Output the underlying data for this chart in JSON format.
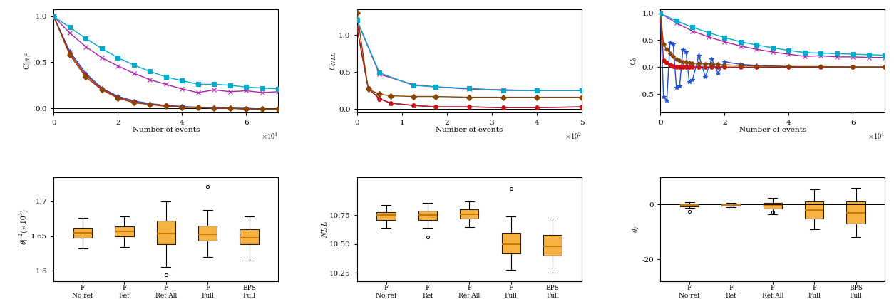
{
  "top_plots": {
    "plot1": {
      "ylabel": "$C_{||\\theta||^2}$",
      "xlabel": "Number of events",
      "xscale_factor": 10000,
      "xlim": [
        0,
        70000
      ],
      "ylim": [
        -0.05,
        1.08
      ],
      "xticks": [
        0,
        20000,
        40000,
        60000
      ],
      "yticks": [
        0.0,
        0.5,
        1.0
      ],
      "series": {
        "forward_no_ref": {
          "x": [
            0,
            5000,
            10000,
            15000,
            20000,
            25000,
            30000,
            35000,
            40000,
            45000,
            50000,
            55000,
            60000,
            65000,
            70000
          ],
          "y": [
            1.0,
            0.62,
            0.38,
            0.22,
            0.13,
            0.08,
            0.05,
            0.03,
            0.02,
            0.01,
            0.01,
            0.0,
            0.0,
            -0.01,
            -0.01
          ],
          "color": "#1f4fcc",
          "marker": "*",
          "linestyle": "-",
          "markersize": 5,
          "zorder": 3
        },
        "forward_ref": {
          "x": [
            0,
            5000,
            10000,
            15000,
            20000,
            25000,
            30000,
            35000,
            40000,
            45000,
            50000,
            55000,
            60000,
            65000,
            70000
          ],
          "y": [
            1.0,
            0.6,
            0.36,
            0.21,
            0.12,
            0.07,
            0.04,
            0.03,
            0.01,
            0.01,
            0.0,
            0.0,
            -0.01,
            -0.01,
            -0.01
          ],
          "color": "#cc1111",
          "marker": "o",
          "linestyle": "-",
          "markersize": 4,
          "zorder": 3
        },
        "forward_ref_all": {
          "x": [
            0,
            5000,
            10000,
            15000,
            20000,
            25000,
            30000,
            35000,
            40000,
            45000,
            50000,
            55000,
            60000,
            65000,
            70000
          ],
          "y": [
            1.0,
            0.58,
            0.34,
            0.2,
            0.11,
            0.06,
            0.04,
            0.02,
            0.01,
            0.01,
            0.0,
            0.0,
            -0.01,
            -0.01,
            -0.01
          ],
          "color": "#884400",
          "marker": "D",
          "linestyle": "-",
          "markersize": 4,
          "zorder": 3
        },
        "forward_full_ref": {
          "x": [
            0,
            5000,
            10000,
            15000,
            20000,
            25000,
            30000,
            35000,
            40000,
            45000,
            50000,
            55000,
            60000,
            65000,
            70000
          ],
          "y": [
            1.0,
            0.82,
            0.67,
            0.55,
            0.46,
            0.38,
            0.31,
            0.26,
            0.21,
            0.17,
            0.2,
            0.18,
            0.19,
            0.17,
            0.18
          ],
          "color": "#aa22aa",
          "marker": "x",
          "linestyle": "-",
          "markersize": 5,
          "zorder": 3
        },
        "bps_full_ref": {
          "x": [
            0,
            5000,
            10000,
            15000,
            20000,
            25000,
            30000,
            35000,
            40000,
            45000,
            50000,
            55000,
            60000,
            65000,
            70000
          ],
          "y": [
            1.0,
            0.88,
            0.76,
            0.65,
            0.55,
            0.47,
            0.4,
            0.34,
            0.3,
            0.26,
            0.26,
            0.25,
            0.23,
            0.22,
            0.21
          ],
          "color": "#00aacc",
          "marker": "s",
          "linestyle": "-",
          "markersize": 5,
          "zorder": 3
        }
      }
    },
    "plot2": {
      "ylabel": "$C_{NLL}$",
      "xlabel": "Number of events",
      "xscale_factor": 100,
      "xlim": [
        0,
        500
      ],
      "ylim": [
        -0.05,
        1.35
      ],
      "xticks": [
        0,
        100,
        200,
        300,
        400,
        500
      ],
      "yticks": [
        0.0,
        0.5,
        1.0
      ],
      "series": {
        "forward_no_ref": {
          "x": [
            0,
            25,
            50,
            75,
            125,
            175,
            250,
            325,
            400,
            500
          ],
          "y": [
            1.1,
            0.28,
            0.14,
            0.08,
            0.05,
            0.03,
            0.03,
            0.02,
            0.02,
            0.03
          ],
          "color": "#1f4fcc",
          "marker": "*",
          "linestyle": "-",
          "markersize": 5,
          "zorder": 3
        },
        "forward_ref": {
          "x": [
            0,
            25,
            50,
            75,
            125,
            175,
            250,
            325,
            400,
            500
          ],
          "y": [
            1.1,
            0.28,
            0.14,
            0.08,
            0.05,
            0.03,
            0.03,
            0.02,
            0.02,
            0.03
          ],
          "color": "#cc1111",
          "marker": "o",
          "linestyle": "-",
          "markersize": 4,
          "zorder": 3
        },
        "forward_ref_all": {
          "x": [
            0,
            25,
            50,
            75,
            125,
            175,
            250,
            325,
            400,
            500
          ],
          "y": [
            1.3,
            0.27,
            0.2,
            0.18,
            0.17,
            0.17,
            0.16,
            0.16,
            0.16,
            0.16
          ],
          "color": "#884400",
          "marker": "D",
          "linestyle": "-",
          "markersize": 4,
          "zorder": 3
        },
        "forward_full_ref": {
          "x": [
            0,
            50,
            125,
            175,
            250,
            325,
            400,
            500
          ],
          "y": [
            1.2,
            0.47,
            0.33,
            0.3,
            0.27,
            0.26,
            0.25,
            0.25
          ],
          "color": "#aa22aa",
          "marker": "x",
          "linestyle": "-",
          "markersize": 5,
          "zorder": 3
        },
        "bps_full_ref": {
          "x": [
            0,
            50,
            125,
            175,
            250,
            325,
            400,
            500
          ],
          "y": [
            1.2,
            0.49,
            0.32,
            0.3,
            0.28,
            0.25,
            0.25,
            0.25
          ],
          "color": "#00aacc",
          "marker": "s",
          "linestyle": "-",
          "markersize": 5,
          "zorder": 3
        }
      }
    },
    "plot3": {
      "ylabel": "$C_{\\theta}$",
      "xlabel": "Number of events",
      "xscale_factor": 10000,
      "xlim": [
        0,
        70000
      ],
      "ylim": [
        -0.85,
        1.08
      ],
      "xticks": [
        0,
        20000,
        40000,
        60000
      ],
      "yticks": [
        -0.5,
        0.0,
        0.5,
        1.0
      ],
      "series": {
        "forward_no_ref": {
          "x": [
            0,
            1000,
            2000,
            3000,
            4000,
            5000,
            6000,
            7000,
            8000,
            9000,
            10000,
            12000,
            14000,
            16000,
            18000,
            20000,
            25000,
            30000,
            40000,
            50000,
            60000,
            70000
          ],
          "y": [
            1.0,
            -0.55,
            -0.62,
            0.45,
            0.42,
            -0.38,
            -0.35,
            0.32,
            0.28,
            -0.27,
            -0.24,
            0.22,
            -0.18,
            0.15,
            -0.12,
            0.1,
            0.05,
            0.03,
            0.01,
            0.0,
            0.0,
            0.0
          ],
          "color": "#1f4fcc",
          "marker": "*",
          "linestyle": "-",
          "markersize": 4,
          "zorder": 3
        },
        "forward_ref": {
          "x": [
            0,
            1000,
            2000,
            3000,
            4000,
            5000,
            6000,
            7000,
            8000,
            9000,
            10000,
            12000,
            14000,
            16000,
            18000,
            20000,
            25000,
            30000,
            40000,
            50000,
            60000,
            70000
          ],
          "y": [
            1.0,
            0.12,
            0.08,
            0.04,
            0.01,
            0.0,
            0.0,
            0.0,
            0.0,
            0.0,
            0.0,
            0.0,
            0.0,
            0.0,
            0.0,
            0.0,
            0.0,
            0.0,
            0.0,
            0.0,
            0.0,
            0.0
          ],
          "color": "#cc1111",
          "marker": "o",
          "linestyle": "-",
          "markersize": 4,
          "zorder": 3
        },
        "forward_ref_all": {
          "x": [
            0,
            1000,
            2000,
            3000,
            4000,
            5000,
            6000,
            7000,
            8000,
            9000,
            10000,
            12000,
            14000,
            16000,
            18000,
            20000,
            25000,
            30000,
            40000,
            50000,
            60000,
            70000
          ],
          "y": [
            1.0,
            0.42,
            0.33,
            0.26,
            0.2,
            0.15,
            0.12,
            0.1,
            0.1,
            0.08,
            0.07,
            0.07,
            0.06,
            0.06,
            0.05,
            0.04,
            0.03,
            0.02,
            0.01,
            0.01,
            0.0,
            0.0
          ],
          "color": "#884400",
          "marker": "D",
          "linestyle": "-",
          "markersize": 3,
          "zorder": 3
        },
        "forward_full_ref": {
          "x": [
            0,
            5000,
            10000,
            15000,
            20000,
            25000,
            30000,
            35000,
            40000,
            45000,
            50000,
            55000,
            60000,
            65000,
            70000
          ],
          "y": [
            1.0,
            0.82,
            0.67,
            0.56,
            0.47,
            0.39,
            0.33,
            0.28,
            0.24,
            0.2,
            0.21,
            0.19,
            0.19,
            0.18,
            0.18
          ],
          "color": "#aa22aa",
          "marker": "x",
          "linestyle": "-",
          "markersize": 5,
          "zorder": 3
        },
        "bps_full_ref": {
          "x": [
            0,
            5000,
            10000,
            15000,
            20000,
            25000,
            30000,
            35000,
            40000,
            45000,
            50000,
            55000,
            60000,
            65000,
            70000
          ],
          "y": [
            1.0,
            0.86,
            0.74,
            0.64,
            0.55,
            0.47,
            0.41,
            0.36,
            0.31,
            0.27,
            0.26,
            0.25,
            0.24,
            0.23,
            0.22
          ],
          "color": "#00aacc",
          "marker": "s",
          "linestyle": "-",
          "markersize": 5,
          "zorder": 3
        }
      }
    }
  },
  "bottom_plots": {
    "plot1": {
      "ylabel": "$||\\theta||^2(\\times 10^3)$",
      "categories": [
        "F\nNo ref",
        "F\nRef",
        "F\nRef All",
        "F\nFull\nRef",
        "BPS\nFull\nRef"
      ],
      "data": [
        {
          "median": 1.655,
          "q1": 1.648,
          "q3": 1.662,
          "whislo": 1.632,
          "whishi": 1.676,
          "fliers": []
        },
        {
          "median": 1.657,
          "q1": 1.65,
          "q3": 1.664,
          "whislo": 1.634,
          "whishi": 1.678,
          "fliers": []
        },
        {
          "median": 1.654,
          "q1": 1.638,
          "q3": 1.672,
          "whislo": 1.605,
          "whishi": 1.7,
          "fliers": [
            1.594
          ]
        },
        {
          "median": 1.653,
          "q1": 1.643,
          "q3": 1.665,
          "whislo": 1.62,
          "whishi": 1.688,
          "fliers": [
            1.722
          ]
        },
        {
          "median": 1.648,
          "q1": 1.638,
          "q3": 1.66,
          "whislo": 1.615,
          "whishi": 1.678,
          "fliers": []
        }
      ],
      "ylim": [
        1.585,
        1.735
      ],
      "yticks": [
        1.6,
        1.65,
        1.7
      ],
      "yticklabels": [
        "1.6",
        "1.65",
        "1.7"
      ]
    },
    "plot2": {
      "ylabel": "$NLL$",
      "categories": [
        "F\nNo ref",
        "F\nRef",
        "F\nRef All",
        "F\nFull\nRef",
        "BPS\nFull\nRef"
      ],
      "data": [
        {
          "median": 10.75,
          "q1": 10.71,
          "q3": 10.78,
          "whislo": 10.64,
          "whishi": 10.84,
          "fliers": []
        },
        {
          "median": 10.75,
          "q1": 10.71,
          "q3": 10.79,
          "whislo": 10.64,
          "whishi": 10.86,
          "fliers": [
            10.56
          ]
        },
        {
          "median": 10.76,
          "q1": 10.72,
          "q3": 10.8,
          "whislo": 10.65,
          "whishi": 10.87,
          "fliers": []
        },
        {
          "median": 10.5,
          "q1": 10.42,
          "q3": 10.6,
          "whislo": 10.28,
          "whishi": 10.74,
          "fliers": [
            10.98
          ]
        },
        {
          "median": 10.48,
          "q1": 10.4,
          "q3": 10.58,
          "whislo": 10.25,
          "whishi": 10.72,
          "fliers": []
        }
      ],
      "ylim": [
        10.18,
        11.08
      ],
      "yticks": [
        10.25,
        10.5,
        10.75
      ],
      "yticklabels": [
        "10.25",
        "10.50",
        "10.75"
      ]
    },
    "plot3": {
      "ylabel": "$\\theta_7$",
      "categories": [
        "F\nNo ref",
        "F\nRef",
        "F\nRef All",
        "F\nFull\nRef",
        "BPS\nFull\nRef"
      ],
      "data": [
        {
          "median": -0.3,
          "q1": -0.6,
          "q3": 0.1,
          "whislo": -1.2,
          "whishi": 0.8,
          "fliers": [
            -2.5
          ]
        },
        {
          "median": -0.2,
          "q1": -0.5,
          "q3": 0.1,
          "whislo": -1.0,
          "whishi": 0.7,
          "fliers": []
        },
        {
          "median": -0.5,
          "q1": -1.5,
          "q3": 0.5,
          "whislo": -3.5,
          "whishi": 2.5,
          "fliers": [
            -2.8
          ]
        },
        {
          "median": -2.0,
          "q1": -5.0,
          "q3": 1.0,
          "whislo": -9.0,
          "whishi": 5.5,
          "fliers": []
        },
        {
          "median": -3.0,
          "q1": -7.0,
          "q3": 1.0,
          "whislo": -12.0,
          "whishi": 6.0,
          "fliers": []
        }
      ],
      "ylim": [
        -28,
        10
      ],
      "yticks": [
        0,
        -20
      ],
      "yticklabels": [
        "0",
        "-20"
      ]
    }
  }
}
